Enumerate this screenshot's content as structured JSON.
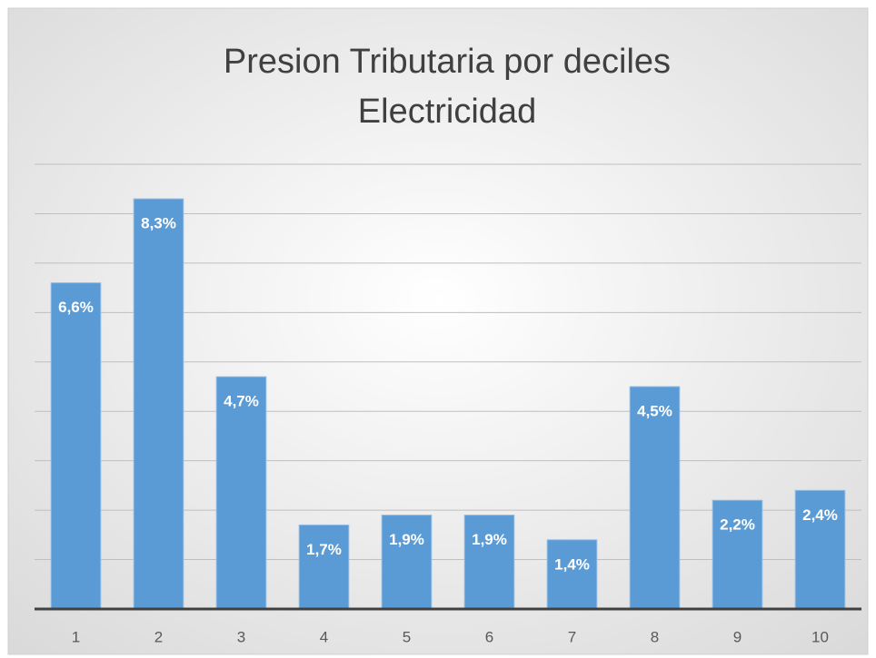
{
  "chart_data": {
    "type": "bar",
    "title": [
      "Presion Tributaria por deciles",
      "Electricidad"
    ],
    "categories": [
      "1",
      "2",
      "3",
      "4",
      "5",
      "6",
      "7",
      "8",
      "9",
      "10"
    ],
    "values": [
      6.6,
      8.3,
      4.7,
      1.7,
      1.9,
      1.9,
      1.4,
      4.5,
      2.2,
      2.4
    ],
    "value_labels": [
      "6,6%",
      "8,3%",
      "4,7%",
      "1,7%",
      "1,9%",
      "1,9%",
      "1,4%",
      "4,5%",
      "2,2%",
      "2,4%"
    ],
    "color": "#5b9bd5",
    "ylim": [
      0,
      9
    ],
    "yticks": [
      1,
      2,
      3,
      4,
      5,
      6,
      7,
      8,
      9
    ],
    "grid": true
  }
}
